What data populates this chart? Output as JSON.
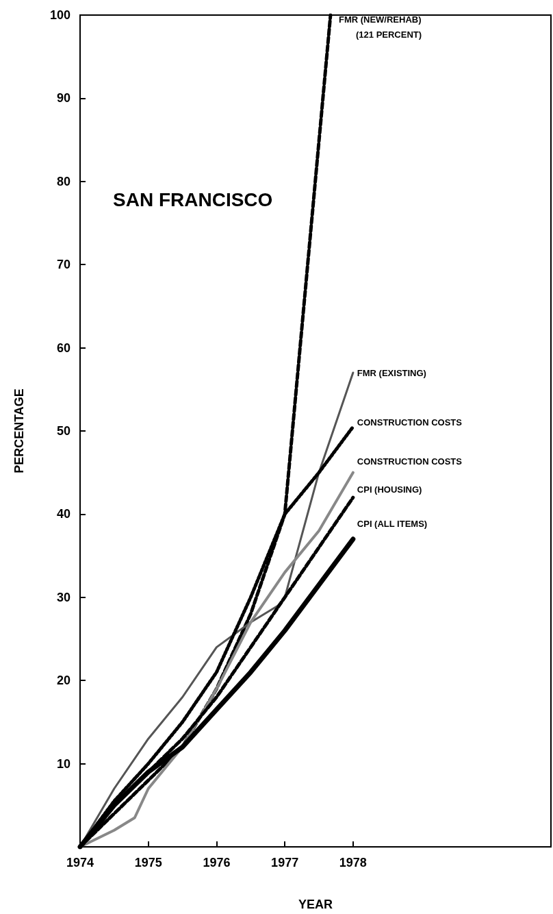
{
  "chart_data": {
    "type": "line",
    "title": "SAN FRANCISCO",
    "xlabel": "YEAR",
    "ylabel": "PERCENTAGE",
    "xlim": [
      1974,
      1980.9
    ],
    "xticks": [
      1974,
      1975,
      1976,
      1977,
      1978
    ],
    "ylim": [
      0,
      100
    ],
    "yticks": [
      10,
      20,
      30,
      40,
      50,
      60,
      70,
      80,
      90,
      100
    ],
    "grid": false,
    "legend": false,
    "marker": "none",
    "annotations": [
      "(121 PERCENT)"
    ],
    "series": [
      {
        "name": "FMR (NEW/REHAB)",
        "color": "#000000",
        "line_style": "dashed",
        "x": [
          1974,
          1974.5,
          1975,
          1975.5,
          1976,
          1976.5,
          1977,
          1977.67
        ],
        "values": [
          0,
          4,
          8,
          12,
          19,
          28,
          40,
          100
        ]
      },
      {
        "name": "FMR (EXISTING)",
        "color": "#555555",
        "line_style": "solid",
        "x": [
          1974,
          1974.5,
          1975,
          1975.5,
          1976,
          1976.5,
          1976.9,
          1977,
          1977.5,
          1978
        ],
        "values": [
          0,
          7,
          13,
          18,
          24,
          27,
          29,
          30,
          45,
          57
        ]
      },
      {
        "name": "CONSTRUCTION COSTS",
        "color": "#000000",
        "line_style": "dotted",
        "x": [
          1974,
          1974.5,
          1975,
          1975.5,
          1976,
          1976.5,
          1977,
          1977.5,
          1978
        ],
        "values": [
          0,
          5.5,
          10,
          15,
          21,
          30,
          40,
          45,
          50.5
        ]
      },
      {
        "name": "CONSTRUCTION COSTS",
        "color": "#888888",
        "line_style": "solid",
        "x": [
          1974,
          1974.5,
          1974.8,
          1975,
          1975.5,
          1976,
          1976.5,
          1977,
          1977.5,
          1978
        ],
        "values": [
          0,
          2,
          3.5,
          7,
          12,
          19,
          27,
          33,
          38,
          45
        ]
      },
      {
        "name": "CPI (HOUSING)",
        "color": "#000000",
        "line_style": "dashed",
        "x": [
          1974,
          1974.5,
          1975,
          1975.5,
          1976,
          1976.5,
          1977,
          1977.5,
          1978
        ],
        "values": [
          0,
          5,
          9,
          13,
          18,
          24,
          30,
          36,
          42
        ]
      },
      {
        "name": "CPI (ALL ITEMS)",
        "color": "#000000",
        "line_style": "solid",
        "x": [
          1974,
          1974.5,
          1975,
          1975.5,
          1976,
          1976.5,
          1977,
          1977.5,
          1978
        ],
        "values": [
          0,
          5,
          9,
          12,
          16.5,
          21,
          26,
          31.5,
          37
        ]
      }
    ]
  }
}
